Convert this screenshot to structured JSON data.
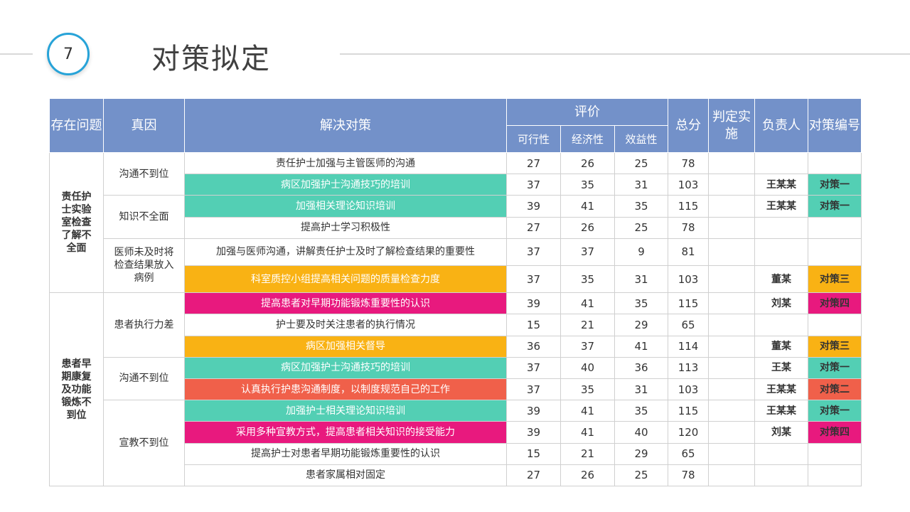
{
  "header": {
    "number": "7",
    "title": "对策拟定"
  },
  "table": {
    "headers": {
      "problem": "存在问题",
      "cause": "真因",
      "measure": "解决对策",
      "evaluation": "评价",
      "feasibility": "可行性",
      "economy": "经济性",
      "benefit": "效益性",
      "total": "总分",
      "decision": "判定实施",
      "owner": "负责人",
      "code": "对策编号"
    },
    "groups": [
      {
        "problem": "责任护士实验室检查了解不全面"
      },
      {
        "problem": "患者早期康复及功能锻炼不到位"
      }
    ],
    "causes": [
      "沟通不到位",
      "知识不全面",
      "医师未及时将检查结果放入病例",
      "患者执行力差",
      "沟通不到位",
      "宣教不到位"
    ],
    "rows": [
      {
        "measure": "责任护士加强与主管医师的沟通",
        "feasibility": "27",
        "economy": "26",
        "benefit": "25",
        "total": "78",
        "decision": "",
        "owner": "",
        "code": "",
        "color": ""
      },
      {
        "measure": "病区加强护士沟通技巧的培训",
        "feasibility": "37",
        "economy": "35",
        "benefit": "31",
        "total": "103",
        "decision": "",
        "owner": "王某某",
        "code": "对策一",
        "color": "#53cfb4"
      },
      {
        "measure": "加强相关理论知识培训",
        "feasibility": "39",
        "economy": "41",
        "benefit": "35",
        "total": "115",
        "decision": "",
        "owner": "王某某",
        "code": "对策一",
        "color": "#53cfb4"
      },
      {
        "measure": "提高护士学习积极性",
        "feasibility": "27",
        "economy": "26",
        "benefit": "25",
        "total": "78",
        "decision": "",
        "owner": "",
        "code": "",
        "color": ""
      },
      {
        "measure": "加强与医师沟通，讲解责任护士及时了解检查结果的重要性",
        "feasibility": "37",
        "economy": "37",
        "benefit": "9",
        "total": "81",
        "decision": "",
        "owner": "",
        "code": "",
        "color": ""
      },
      {
        "measure": "科室质控小组提高相关问题的质量检查力度",
        "feasibility": "37",
        "economy": "35",
        "benefit": "31",
        "total": "103",
        "decision": "",
        "owner": "董某",
        "code": "对策三",
        "color": "#f9b214"
      },
      {
        "measure": "提高患者对早期功能锻炼重要性的认识",
        "feasibility": "39",
        "economy": "41",
        "benefit": "35",
        "total": "115",
        "decision": "",
        "owner": "刘某",
        "code": "对策四",
        "color": "#e8197e"
      },
      {
        "measure": "护士要及时关注患者的执行情况",
        "feasibility": "15",
        "economy": "21",
        "benefit": "29",
        "total": "65",
        "decision": "",
        "owner": "",
        "code": "",
        "color": ""
      },
      {
        "measure": "病区加强相关督导",
        "feasibility": "36",
        "economy": "37",
        "benefit": "41",
        "total": "114",
        "decision": "",
        "owner": "董某",
        "code": "对策三",
        "color": "#f9b214"
      },
      {
        "measure": "病区加强护士沟通技巧的培训",
        "feasibility": "37",
        "economy": "40",
        "benefit": "36",
        "total": "113",
        "decision": "",
        "owner": "王某",
        "code": "对策一",
        "color": "#53cfb4"
      },
      {
        "measure": "认真执行护患沟通制度，以制度规范自己的工作",
        "feasibility": "37",
        "economy": "35",
        "benefit": "31",
        "total": "103",
        "decision": "",
        "owner": "王某某",
        "code": "对策二",
        "color": "#f0604a"
      },
      {
        "measure": "加强护士相关理论知识培训",
        "feasibility": "39",
        "economy": "41",
        "benefit": "35",
        "total": "115",
        "decision": "",
        "owner": "王某某",
        "code": "对策一",
        "color": "#53cfb4"
      },
      {
        "measure": "采用多种宣教方式，提高患者相关知识的接受能力",
        "feasibility": "39",
        "economy": "41",
        "benefit": "40",
        "total": "120",
        "decision": "",
        "owner": "刘某",
        "code": "对策四",
        "color": "#e8197e"
      },
      {
        "measure": "提高护士对患者早期功能锻炼重要性的认识",
        "feasibility": "15",
        "economy": "21",
        "benefit": "29",
        "total": "65",
        "decision": "",
        "owner": "",
        "code": "",
        "color": ""
      },
      {
        "measure": "患者家属相对固定",
        "feasibility": "27",
        "economy": "26",
        "benefit": "25",
        "total": "78",
        "decision": "",
        "owner": "",
        "code": "",
        "color": ""
      }
    ]
  }
}
